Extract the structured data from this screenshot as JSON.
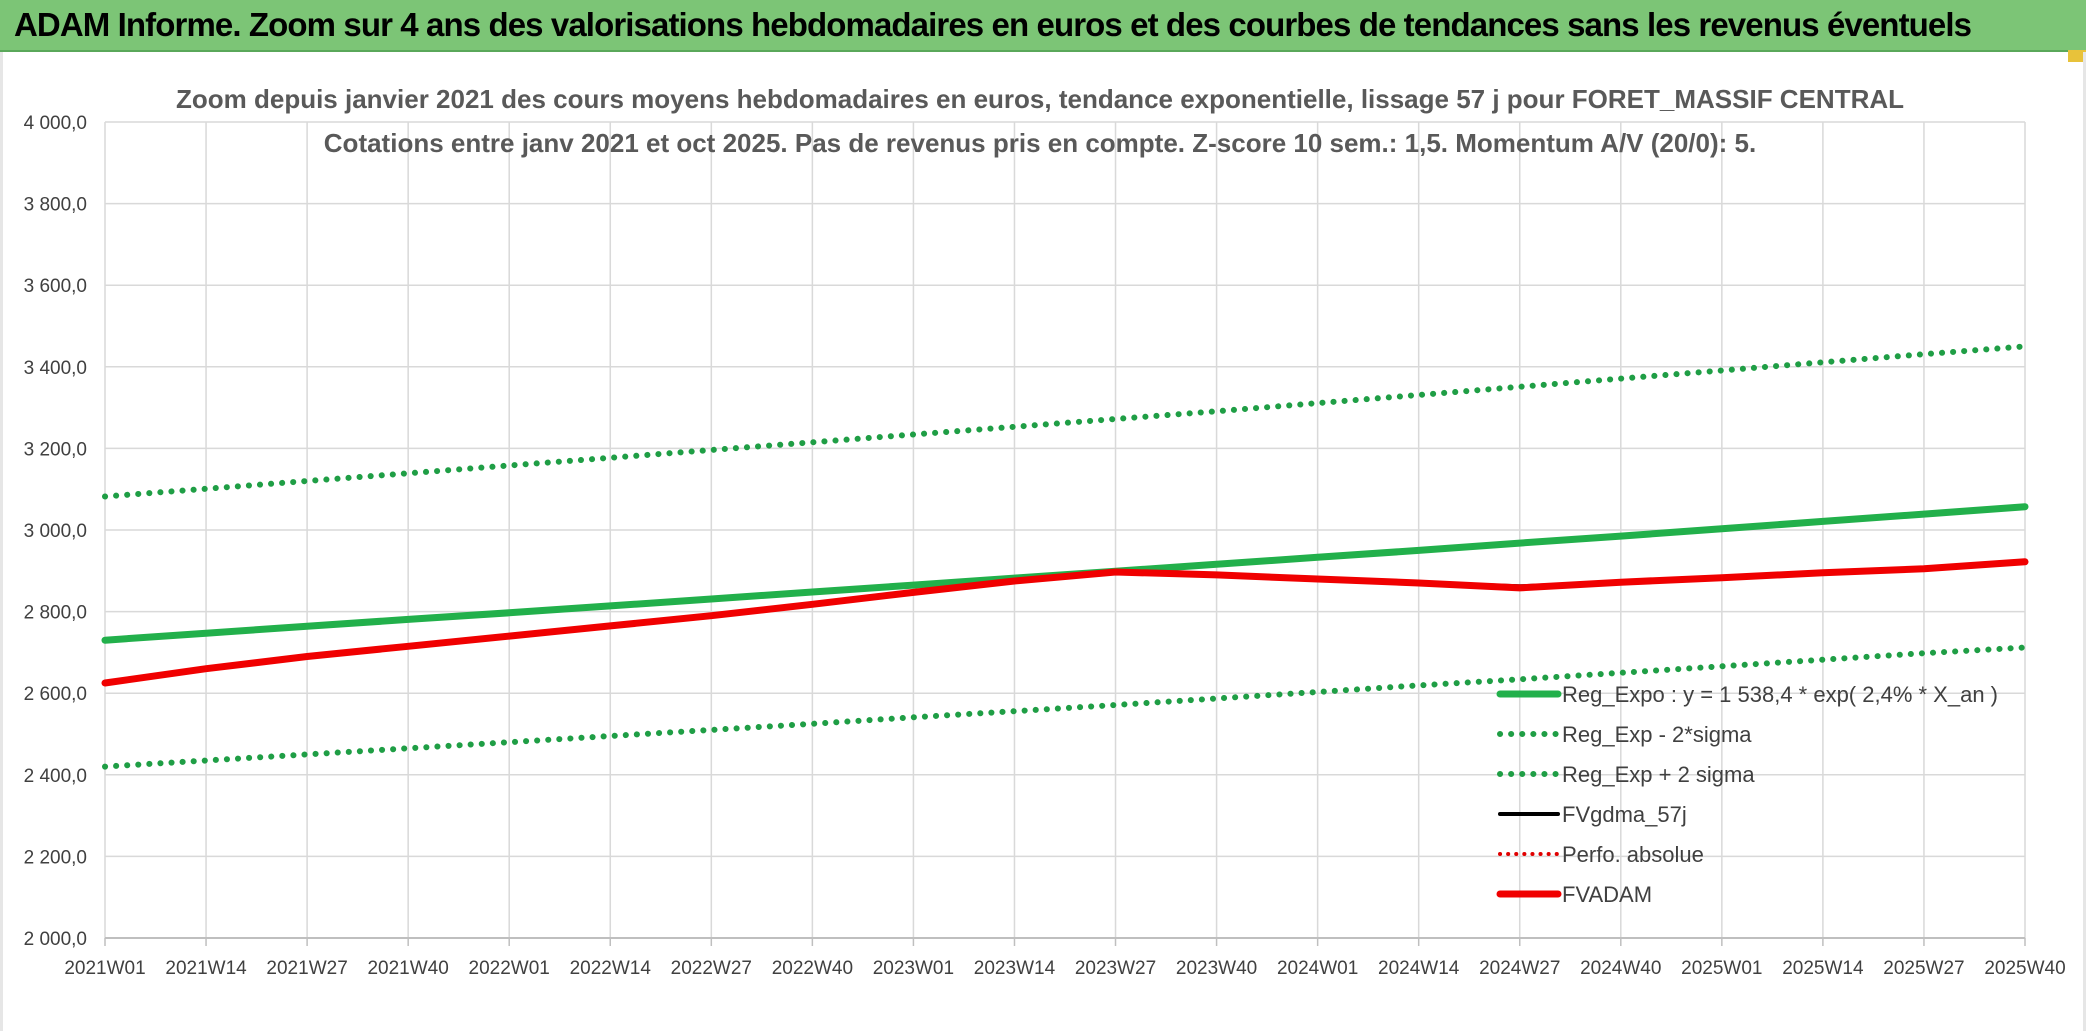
{
  "banner": {
    "title": "ADAM Informe. Zoom sur 4 ans des valorisations hebdomadaires en euros et des courbes de tendances sans les revenus éventuels"
  },
  "colors": {
    "banner_bg": "#7cc576",
    "reg_expo": "#22b04b",
    "sigma_bands": "#1f9e45",
    "fvgdma": "#000000",
    "perfo": "#e00000",
    "fvadam": "#f00000",
    "grid": "#d9d9d9"
  },
  "chart_data": {
    "type": "line",
    "title": "Zoom depuis janvier 2021 des cours moyens hebdomadaires en euros, tendance exponentielle, lissage 57 j pour FORET_MASSIF CENTRAL",
    "subtitle": "Cotations entre janv 2021 et oct 2025. Pas de revenus pris en compte. Z-score 10 sem.: 1,5. Momentum A/V (20/0): 5.",
    "xlabel": "",
    "ylabel": "",
    "categories": [
      "2021W01",
      "2021W14",
      "2021W27",
      "2021W40",
      "2022W01",
      "2022W14",
      "2022W27",
      "2022W40",
      "2023W01",
      "2023W14",
      "2023W27",
      "2023W40",
      "2024W01",
      "2024W14",
      "2024W27",
      "2024W40",
      "2025W01",
      "2025W14",
      "2025W27",
      "2025W40"
    ],
    "ylim": [
      2000,
      4000
    ],
    "yticks": [
      "2 000,0",
      "2 200,0",
      "2 400,0",
      "2 600,0",
      "2 800,0",
      "3 000,0",
      "3 200,0",
      "3 400,0",
      "3 600,0",
      "3 800,0",
      "4 000,0"
    ],
    "grid": true,
    "legend_position": "bottom-right",
    "series": [
      {
        "name": "Reg_Expo : y = 1 538,4 * exp( 2,4% *  X_an )",
        "style": "solid-thick",
        "values": [
          2730,
          2747,
          2764,
          2781,
          2797,
          2814,
          2831,
          2848,
          2865,
          2882,
          2899,
          2916,
          2933,
          2950,
          2968,
          2985,
          3003,
          3021,
          3039,
          3057
        ]
      },
      {
        "name": "Reg_Exp - 2*sigma",
        "style": "dotted",
        "values": [
          2420,
          2435,
          2450,
          2465,
          2480,
          2495,
          2510,
          2525,
          2541,
          2556,
          2571,
          2587,
          2603,
          2619,
          2634,
          2650,
          2666,
          2682,
          2698,
          2712
        ]
      },
      {
        "name": "Reg_Exp + 2 sigma",
        "style": "dotted",
        "values": [
          3082,
          3101,
          3120,
          3139,
          3158,
          3177,
          3196,
          3215,
          3234,
          3253,
          3272,
          3291,
          3311,
          3331,
          3351,
          3371,
          3391,
          3411,
          3431,
          3450
        ]
      },
      {
        "name": "FVgdma_57j",
        "style": "solid-thin",
        "values": [
          2625,
          2660,
          2690,
          2715,
          2740,
          2765,
          2790,
          2818,
          2847,
          2875,
          2896,
          2890,
          2880,
          2870,
          2862,
          2872,
          2883,
          2895,
          2905,
          2921
        ]
      },
      {
        "name": "Perfo. absolue",
        "style": "dotted-red",
        "values": [
          2625,
          2660,
          2690,
          2715,
          2740,
          2765,
          2790,
          2818,
          2847,
          2875,
          2896,
          2890,
          2880,
          2870,
          2860,
          2872,
          2883,
          2895,
          2905,
          2921
        ]
      },
      {
        "name": "FVADAM",
        "style": "solid-thick-red",
        "values": [
          2625,
          2660,
          2690,
          2715,
          2740,
          2765,
          2790,
          2818,
          2847,
          2875,
          2897,
          2890,
          2880,
          2870,
          2858,
          2872,
          2883,
          2895,
          2905,
          2922
        ]
      }
    ]
  }
}
